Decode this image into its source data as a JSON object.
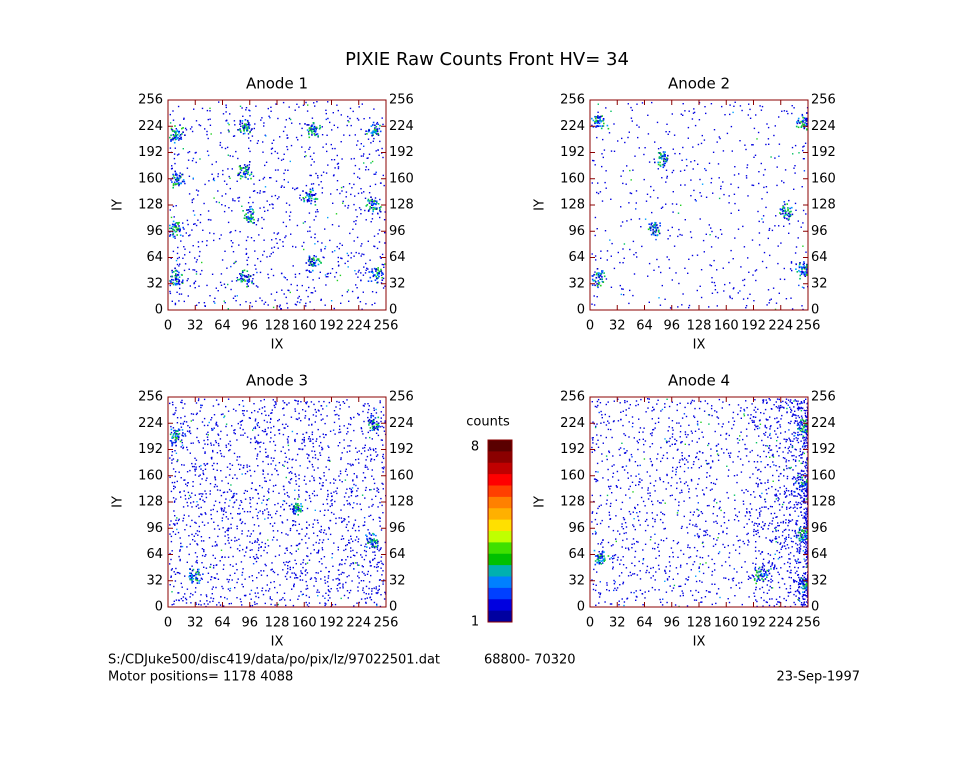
{
  "title": "PIXIE Raw Counts Front HV= 34",
  "chart_data": [
    {
      "type": "scatter",
      "title": "Anode 1",
      "xlabel": "IX",
      "ylabel": "IY",
      "x": [
        90,
        170,
        240,
        10,
        90,
        10,
        95,
        165,
        240,
        8,
        90,
        245,
        10,
        170
      ],
      "values": [
        225,
        220,
        220,
        215,
        170,
        160,
        115,
        140,
        130,
        100,
        40,
        45,
        40,
        60
      ],
      "color": "#0000cc",
      "xlim": [
        0,
        256
      ],
      "ylim": [
        0,
        256
      ],
      "xticks": [
        0,
        32,
        64,
        96,
        128,
        160,
        192,
        224,
        256
      ],
      "yticks": [
        0,
        32,
        64,
        96,
        128,
        160,
        192,
        224,
        256
      ]
    },
    {
      "type": "scatter",
      "title": "Anode 2",
      "xlabel": "IX",
      "ylabel": "IY",
      "x": [
        10,
        85,
        250,
        75,
        10,
        250,
        230
      ],
      "values": [
        230,
        185,
        230,
        100,
        40,
        50,
        120
      ],
      "color": "#0000cc",
      "xlim": [
        0,
        256
      ],
      "ylim": [
        0,
        256
      ],
      "xticks": [
        0,
        32,
        64,
        96,
        128,
        160,
        192,
        224,
        256
      ],
      "yticks": [
        0,
        32,
        64,
        96,
        128,
        160,
        192,
        224,
        256
      ]
    },
    {
      "type": "scatter",
      "title": "Anode 3",
      "xlabel": "IX",
      "ylabel": "IY",
      "x": [
        240,
        10,
        30,
        240,
        150
      ],
      "values": [
        225,
        210,
        40,
        80,
        120
      ],
      "color": "#0000cc",
      "xlim": [
        0,
        256
      ],
      "ylim": [
        0,
        256
      ],
      "xticks": [
        0,
        32,
        64,
        96,
        128,
        160,
        192,
        224,
        256
      ],
      "yticks": [
        0,
        32,
        64,
        96,
        128,
        160,
        192,
        224,
        256
      ]
    },
    {
      "type": "scatter",
      "title": "Anode 4",
      "xlabel": "IX",
      "ylabel": "IY",
      "x": [
        250,
        250,
        250,
        250,
        10,
        200
      ],
      "values": [
        220,
        150,
        90,
        30,
        60,
        40
      ],
      "color": "#0000cc",
      "xlim": [
        0,
        256
      ],
      "ylim": [
        0,
        256
      ],
      "xticks": [
        0,
        32,
        64,
        96,
        128,
        160,
        192,
        224,
        256
      ],
      "yticks": [
        0,
        32,
        64,
        96,
        128,
        160,
        192,
        224,
        256
      ]
    }
  ],
  "colorbar": {
    "label": "counts",
    "min": 1,
    "max": 8
  },
  "footer": {
    "file": "S:/CDJuke500/disc419/data/po/pix/lz/97022501.dat",
    "range": "68800- 70320",
    "motor": "Motor positions= 1178 4088",
    "date": "23-Sep-1997"
  }
}
